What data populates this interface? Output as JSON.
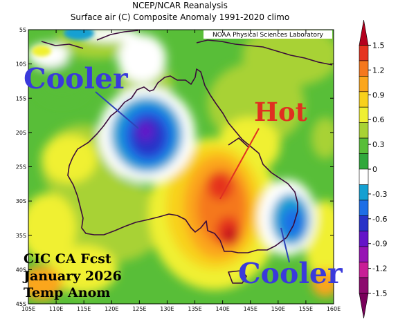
{
  "header": {
    "line1": "NCEP/NCAR Reanalysis",
    "line2": "Surface air (C) Composite Anomaly 1991-2020 climo"
  },
  "credit": "NOAA Physical Sciences Laboratory",
  "axes": {
    "lat_ticks": [
      "5S",
      "10S",
      "15S",
      "20S",
      "25S",
      "30S",
      "35S",
      "40S",
      "45S"
    ],
    "lon_ticks": [
      "105E",
      "110E",
      "115E",
      "120E",
      "125E",
      "130E",
      "135E",
      "140E",
      "145E",
      "150E",
      "155E",
      "160E"
    ]
  },
  "colorbar": {
    "labels": [
      "1.5",
      "1.2",
      "0.9",
      "0.6",
      "0.3",
      "0",
      "-0.3",
      "-0.6",
      "-0.9",
      "-1.2",
      "-1.5"
    ],
    "colors": [
      "#b4001e",
      "#e5331f",
      "#f5781d",
      "#fba61c",
      "#f8d11c",
      "#f0f032",
      "#a8d234",
      "#58be38",
      "#30a83c",
      "#ffffff",
      "#14a0d2",
      "#1e6ee6",
      "#2832c8",
      "#6414c8",
      "#9614b4",
      "#c81e96",
      "#8c0a6e",
      "#78005a"
    ]
  },
  "annotations": {
    "cooler_nw": "Cooler",
    "hot": "Hot",
    "cooler_se": "Cooler"
  },
  "forecast": {
    "line1": "CIC CA Fcst",
    "line2": "January 2026",
    "line3": "Temp Anom"
  }
}
